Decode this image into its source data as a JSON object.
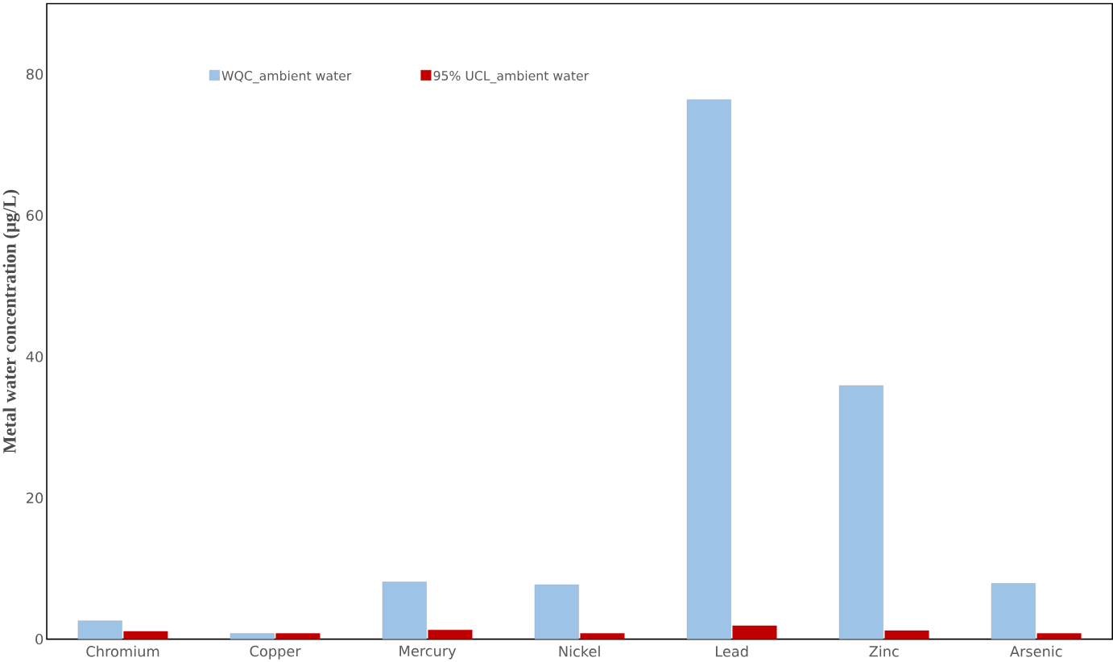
{
  "chart_data": {
    "type": "bar",
    "ylabel": "Metal water concentration (µg/L)",
    "categories": [
      "Chromium",
      "Copper",
      "Mercury",
      "Nickel",
      "Lead",
      "Zinc",
      "Arsenic"
    ],
    "series": [
      {
        "name": "WQC_ambient water",
        "color": "#9dc3e6",
        "values": [
          2.6,
          0.8,
          8.1,
          7.7,
          76.4,
          35.9,
          7.9
        ]
      },
      {
        "name": "95% UCL_ambient water",
        "color": "#c00000",
        "values": [
          1.1,
          0.8,
          1.3,
          0.8,
          1.9,
          1.2,
          0.8
        ]
      }
    ],
    "ylim": [
      0,
      90
    ],
    "yticks": [
      0,
      20,
      40,
      60,
      80
    ],
    "grid": false,
    "legend": "top left"
  }
}
